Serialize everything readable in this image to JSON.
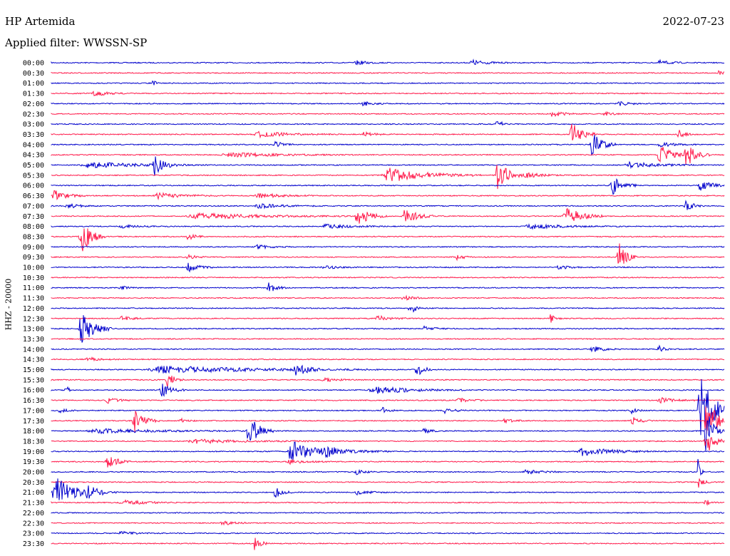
{
  "header": {
    "station": "HP Artemida",
    "date": "2022-07-23",
    "filter": "Applied filter: WWSSN-SP"
  },
  "chart_data": {
    "type": "seismogram",
    "ylabel": "HHZ - 20000",
    "colors": [
      "#0000cc",
      "#ff1a4b"
    ],
    "rows": [
      {
        "label": "00:00",
        "events": [
          [
            0.45,
            0.05,
            3
          ],
          [
            0.62,
            0.06,
            4
          ],
          [
            0.9,
            0.05,
            3
          ]
        ]
      },
      {
        "label": "00:30",
        "events": [
          [
            0.99,
            0.02,
            3
          ]
        ]
      },
      {
        "label": "01:00",
        "events": [
          [
            0.15,
            0.01,
            6
          ]
        ]
      },
      {
        "label": "01:30",
        "events": [
          [
            0.06,
            0.05,
            4
          ]
        ]
      },
      {
        "label": "02:00",
        "events": [
          [
            0.46,
            0.04,
            3
          ],
          [
            0.84,
            0.04,
            4
          ]
        ]
      },
      {
        "label": "02:30",
        "events": [
          [
            0.74,
            0.05,
            4
          ],
          [
            0.82,
            0.03,
            3
          ]
        ]
      },
      {
        "label": "03:00",
        "events": [
          [
            0.66,
            0.02,
            10
          ]
        ]
      },
      {
        "label": "03:30",
        "events": [
          [
            0.3,
            0.12,
            4
          ],
          [
            0.46,
            0.05,
            3
          ],
          [
            0.77,
            0.04,
            18
          ],
          [
            0.93,
            0.03,
            6
          ]
        ]
      },
      {
        "label": "04:00",
        "events": [
          [
            0.33,
            0.03,
            5
          ],
          [
            0.8,
            0.04,
            20
          ],
          [
            0.9,
            0.06,
            3
          ]
        ]
      },
      {
        "label": "04:30",
        "events": [
          [
            0.25,
            0.2,
            3
          ],
          [
            0.9,
            0.04,
            18
          ],
          [
            0.94,
            0.04,
            18
          ]
        ]
      },
      {
        "label": "05:00",
        "events": [
          [
            0.04,
            0.2,
            4
          ],
          [
            0.15,
            0.04,
            14
          ],
          [
            0.85,
            0.12,
            4
          ]
        ]
      },
      {
        "label": "05:30",
        "events": [
          [
            0.49,
            0.15,
            10
          ],
          [
            0.66,
            0.04,
            24
          ],
          [
            0.7,
            0.06,
            4
          ]
        ]
      },
      {
        "label": "06:00",
        "events": [
          [
            0.83,
            0.04,
            14
          ],
          [
            0.96,
            0.05,
            8
          ]
        ]
      },
      {
        "label": "06:30",
        "events": [
          [
            0.0,
            0.05,
            8
          ],
          [
            0.15,
            0.1,
            4
          ],
          [
            0.3,
            0.1,
            3
          ]
        ]
      },
      {
        "label": "07:00",
        "events": [
          [
            0.02,
            0.05,
            3
          ],
          [
            0.3,
            0.1,
            3
          ],
          [
            0.94,
            0.03,
            8
          ]
        ]
      },
      {
        "label": "07:30",
        "events": [
          [
            0.2,
            0.25,
            4
          ],
          [
            0.45,
            0.05,
            14
          ],
          [
            0.52,
            0.05,
            12
          ],
          [
            0.76,
            0.06,
            14
          ]
        ]
      },
      {
        "label": "08:00",
        "events": [
          [
            0.1,
            0.06,
            3
          ],
          [
            0.4,
            0.1,
            3
          ],
          [
            0.7,
            0.15,
            3
          ]
        ]
      },
      {
        "label": "08:30",
        "events": [
          [
            0.04,
            0.04,
            28
          ],
          [
            0.2,
            0.03,
            5
          ]
        ]
      },
      {
        "label": "09:00",
        "events": [
          [
            0.3,
            0.06,
            3
          ]
        ]
      },
      {
        "label": "09:30",
        "events": [
          [
            0.2,
            0.03,
            4
          ],
          [
            0.6,
            0.03,
            4
          ],
          [
            0.84,
            0.03,
            24
          ]
        ]
      },
      {
        "label": "10:00",
        "events": [
          [
            0.2,
            0.04,
            8
          ],
          [
            0.4,
            0.05,
            3
          ],
          [
            0.75,
            0.04,
            3
          ]
        ]
      },
      {
        "label": "10:30",
        "events": []
      },
      {
        "label": "11:00",
        "events": [
          [
            0.1,
            0.03,
            3
          ],
          [
            0.32,
            0.03,
            8
          ]
        ]
      },
      {
        "label": "11:30",
        "events": [
          [
            0.52,
            0.04,
            3
          ]
        ]
      },
      {
        "label": "12:00",
        "events": [
          [
            0.53,
            0.02,
            14
          ]
        ]
      },
      {
        "label": "12:30",
        "events": [
          [
            0.1,
            0.05,
            3
          ],
          [
            0.48,
            0.05,
            4
          ],
          [
            0.74,
            0.02,
            6
          ]
        ]
      },
      {
        "label": "13:00",
        "events": [
          [
            0.04,
            0.05,
            24
          ],
          [
            0.55,
            0.05,
            3
          ]
        ]
      },
      {
        "label": "13:30",
        "events": []
      },
      {
        "label": "14:00",
        "events": [
          [
            0.8,
            0.05,
            4
          ],
          [
            0.9,
            0.02,
            6
          ]
        ]
      },
      {
        "label": "14:30",
        "events": [
          [
            0.05,
            0.05,
            3
          ]
        ]
      },
      {
        "label": "15:00",
        "events": [
          [
            0.14,
            0.35,
            5
          ],
          [
            0.36,
            0.04,
            10
          ],
          [
            0.54,
            0.03,
            10
          ]
        ]
      },
      {
        "label": "15:30",
        "events": [
          [
            0.17,
            0.03,
            10
          ],
          [
            0.4,
            0.05,
            3
          ]
        ]
      },
      {
        "label": "16:00",
        "events": [
          [
            0.02,
            0.01,
            10
          ],
          [
            0.16,
            0.04,
            10
          ],
          [
            0.47,
            0.15,
            5
          ]
        ]
      },
      {
        "label": "16:30",
        "events": [
          [
            0.08,
            0.04,
            4
          ],
          [
            0.6,
            0.05,
            3
          ],
          [
            0.9,
            0.06,
            4
          ]
        ]
      },
      {
        "label": "17:00",
        "events": [
          [
            0.01,
            0.03,
            3
          ],
          [
            0.49,
            0.02,
            6
          ],
          [
            0.58,
            0.04,
            4
          ],
          [
            0.86,
            0.02,
            4
          ],
          [
            0.96,
            0.05,
            60
          ]
        ]
      },
      {
        "label": "17:30",
        "events": [
          [
            0.12,
            0.04,
            16
          ],
          [
            0.19,
            0.03,
            3
          ],
          [
            0.67,
            0.04,
            3
          ],
          [
            0.86,
            0.03,
            8
          ],
          [
            0.97,
            0.04,
            35
          ]
        ]
      },
      {
        "label": "18:00",
        "events": [
          [
            0.05,
            0.25,
            3
          ],
          [
            0.29,
            0.04,
            24
          ],
          [
            0.55,
            0.03,
            4
          ],
          [
            0.97,
            0.03,
            30
          ]
        ]
      },
      {
        "label": "18:30",
        "events": [
          [
            0.2,
            0.2,
            3
          ],
          [
            0.97,
            0.03,
            25
          ]
        ]
      },
      {
        "label": "19:00",
        "events": [
          [
            0.35,
            0.08,
            18
          ],
          [
            0.4,
            0.1,
            6
          ],
          [
            0.78,
            0.12,
            6
          ]
        ]
      },
      {
        "label": "19:30",
        "events": [
          [
            0.08,
            0.04,
            10
          ],
          [
            0.35,
            0.06,
            3
          ]
        ]
      },
      {
        "label": "20:00",
        "events": [
          [
            0.45,
            0.03,
            4
          ],
          [
            0.7,
            0.06,
            3
          ],
          [
            0.96,
            0.01,
            20
          ]
        ]
      },
      {
        "label": "20:30",
        "events": [
          [
            0.96,
            0.02,
            8
          ]
        ]
      },
      {
        "label": "21:00",
        "events": [
          [
            0.0,
            0.08,
            22
          ],
          [
            0.05,
            0.05,
            6
          ],
          [
            0.33,
            0.03,
            8
          ],
          [
            0.45,
            0.05,
            3
          ]
        ]
      },
      {
        "label": "21:30",
        "events": [
          [
            0.1,
            0.1,
            3
          ],
          [
            0.97,
            0.02,
            5
          ]
        ]
      },
      {
        "label": "22:00",
        "events": []
      },
      {
        "label": "22:30",
        "events": [
          [
            0.25,
            0.05,
            3
          ]
        ]
      },
      {
        "label": "23:00",
        "events": [
          [
            0.1,
            0.05,
            3
          ]
        ]
      },
      {
        "label": "23:30",
        "events": [
          [
            0.3,
            0.02,
            14
          ]
        ]
      }
    ]
  }
}
